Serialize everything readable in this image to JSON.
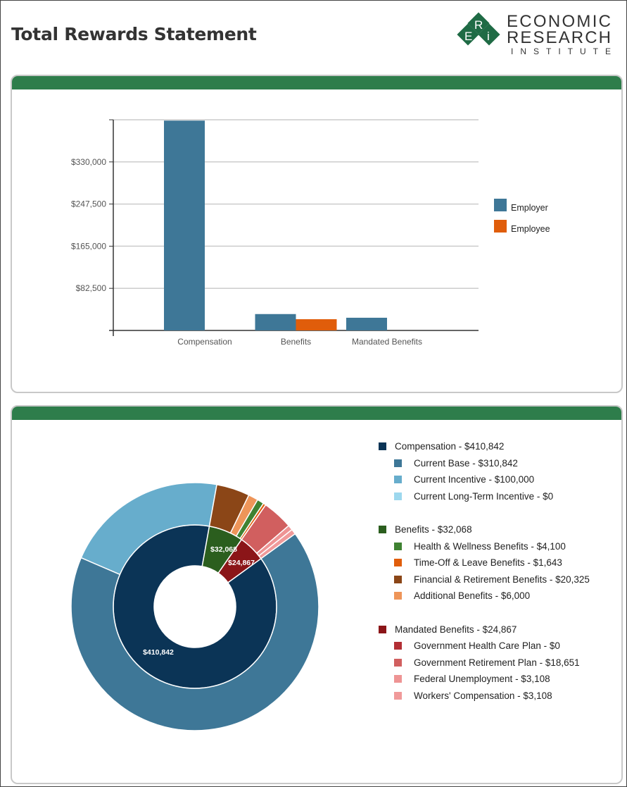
{
  "header": {
    "title": "Total Rewards Statement",
    "logo": {
      "letters": [
        "E",
        "R",
        "i"
      ],
      "line1": "ECONOMIC",
      "line2": "RESEARCH",
      "line3": "INSTITUTE"
    }
  },
  "colors": {
    "brand_green": "#2e7d4b",
    "employer": "#3e7797",
    "employee": "#e05d0b"
  },
  "chart_data": [
    {
      "type": "bar",
      "title": "",
      "categories": [
        "Compensation",
        "Benefits",
        "Mandated Benefits"
      ],
      "series": [
        {
          "name": "Employer",
          "color": "#3e7797",
          "values": [
            410842,
            32068,
            24867
          ]
        },
        {
          "name": "Employee",
          "color": "#e05d0b",
          "values": [
            0,
            22000,
            0
          ]
        }
      ],
      "yticks": [
        0,
        82500,
        165000,
        247500,
        330000
      ],
      "ytick_labels": [
        "",
        "$82,500",
        "$165,000",
        "$247,500",
        "$330,000"
      ],
      "ylim": [
        0,
        412500
      ],
      "grid": true,
      "legend": "right"
    },
    {
      "type": "pie",
      "subtype": "sunburst-donut",
      "inner": [
        {
          "name": "Compensation",
          "value": 410842,
          "label": "$410,842",
          "legend": "Compensation - $410,842",
          "color": "#0b3456"
        },
        {
          "name": "Benefits",
          "value": 32068,
          "label": "$32,068",
          "legend": "Benefits - $32,068",
          "color": "#2b5e1e"
        },
        {
          "name": "Mandated Benefits",
          "value": 24867,
          "label": "$24,867",
          "legend": "Mandated Benefits - $24,867",
          "color": "#8b1518"
        }
      ],
      "outer": [
        {
          "parent": 0,
          "name": "Current Base",
          "value": 310842,
          "legend": "Current Base - $310,842",
          "color": "#3e7797"
        },
        {
          "parent": 0,
          "name": "Current Incentive",
          "value": 100000,
          "legend": "Current Incentive - $100,000",
          "color": "#67adcc"
        },
        {
          "parent": 0,
          "name": "Current Long-Term Incentive",
          "value": 0,
          "legend": "Current Long-Term Incentive - $0",
          "color": "#9dd8ee"
        },
        {
          "parent": 1,
          "name": "Health & Wellness Benefits",
          "value": 4100,
          "legend": "Health & Wellness Benefits - $4,100",
          "color": "#3f8232"
        },
        {
          "parent": 1,
          "name": "Time-Off & Leave Benefits",
          "value": 1643,
          "legend": "Time-Off & Leave Benefits - $1,643",
          "color": "#e05d0b"
        },
        {
          "parent": 1,
          "name": "Financial & Retirement Benefits",
          "value": 20325,
          "legend": "Financial & Retirement Benefits - $20,325",
          "color": "#8b4617"
        },
        {
          "parent": 1,
          "name": "Additional Benefits",
          "value": 6000,
          "legend": "Additional Benefits - $6,000",
          "color": "#ee9559"
        },
        {
          "parent": 2,
          "name": "Government Health Care Plan",
          "value": 0,
          "legend": "Government Health Care Plan - $0",
          "color": "#b32f35"
        },
        {
          "parent": 2,
          "name": "Government Retirement Plan",
          "value": 18651,
          "legend": "Government Retirement Plan - $18,651",
          "color": "#d15f5f"
        },
        {
          "parent": 2,
          "name": "Federal Unemployment",
          "value": 3108,
          "legend": "Federal Unemployment - $3,108",
          "color": "#ee9494"
        },
        {
          "parent": 2,
          "name": "Workers' Compensation",
          "value": 3108,
          "legend": "Workers' Compensation - $3,108",
          "color": "#f09a9a"
        }
      ],
      "legend": "right"
    }
  ]
}
